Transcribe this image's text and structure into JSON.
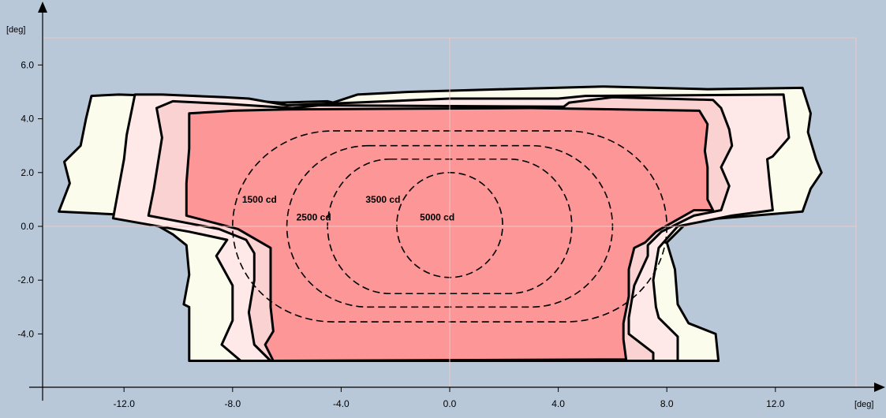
{
  "colors": {
    "background": "#b9c8d8",
    "plot_area": "#b9c8d8",
    "grid_line": "#f0c8c8",
    "zone_outer": "#fcfcec",
    "zone_2": "#ffe8e8",
    "zone_3": "#fbd2d2",
    "zone_inner": "#fd9696",
    "outline": "#000000"
  },
  "chart_data": {
    "type": "contour",
    "title": "",
    "xlabel": "[deg]",
    "ylabel": "[deg]",
    "xlim": [
      -15,
      15
    ],
    "ylim": [
      -6,
      7
    ],
    "x_ticks": [
      -12,
      -8,
      -4,
      0,
      4,
      8,
      12
    ],
    "x_tick_labels": [
      "-12.0",
      "-8.0",
      "-4.0",
      "0.0",
      "4.0",
      "8.0",
      "12.0"
    ],
    "y_ticks": [
      -4,
      -2,
      0,
      2,
      4,
      6
    ],
    "y_tick_labels": [
      "-4.0",
      "-2.0",
      "0.0",
      "2.0",
      "4.0",
      "6.0"
    ],
    "grid": "center crosshair",
    "filled_zones": [
      {
        "fill": "zone_outer",
        "points": [
          [
            -13.2,
            4.85
          ],
          [
            -12.2,
            4.9
          ],
          [
            -10.6,
            4.85
          ],
          [
            -8.1,
            4.7
          ],
          [
            -6.2,
            4.6
          ],
          [
            -4.5,
            4.65
          ],
          [
            -4.3,
            4.6
          ],
          [
            -3.4,
            4.9
          ],
          [
            -1.5,
            5.0
          ],
          [
            2.0,
            5.1
          ],
          [
            5.7,
            5.2
          ],
          [
            9.5,
            5.1
          ],
          [
            13.0,
            5.15
          ],
          [
            13.3,
            4.2
          ],
          [
            13.2,
            3.5
          ],
          [
            13.5,
            2.5
          ],
          [
            13.7,
            2.0
          ],
          [
            13.3,
            1.4
          ],
          [
            13.0,
            0.55
          ],
          [
            8.8,
            0.2
          ],
          [
            8.0,
            -0.6
          ],
          [
            8.3,
            -1.6
          ],
          [
            8.4,
            -2.9
          ],
          [
            8.8,
            -3.6
          ],
          [
            9.8,
            -4.0
          ],
          [
            9.9,
            -5.0
          ],
          [
            -9.6,
            -5.0
          ],
          [
            -9.6,
            -3.0
          ],
          [
            -9.8,
            -2.9
          ],
          [
            -9.6,
            -1.8
          ],
          [
            -9.7,
            -0.7
          ],
          [
            -10.2,
            -0.3
          ],
          [
            -11.4,
            0.4
          ],
          [
            -14.4,
            0.55
          ],
          [
            -14.0,
            1.6
          ],
          [
            -14.2,
            2.4
          ],
          [
            -13.6,
            3.0
          ],
          [
            -13.4,
            4.0
          ]
        ]
      },
      {
        "fill": "zone_2",
        "points": [
          [
            -11.6,
            4.9
          ],
          [
            -10.6,
            4.9
          ],
          [
            -8.3,
            4.8
          ],
          [
            -7.4,
            4.75
          ],
          [
            -6.0,
            4.5
          ],
          [
            -3.5,
            4.6
          ],
          [
            0.0,
            4.75
          ],
          [
            4.0,
            4.75
          ],
          [
            5.0,
            4.85
          ],
          [
            12.3,
            4.9
          ],
          [
            12.5,
            3.3
          ],
          [
            11.9,
            2.6
          ],
          [
            11.7,
            2.5
          ],
          [
            11.8,
            1.5
          ],
          [
            11.9,
            0.6
          ],
          [
            10.4,
            0.4
          ],
          [
            8.4,
            0.0
          ],
          [
            7.7,
            -0.8
          ],
          [
            7.5,
            -2.0
          ],
          [
            7.6,
            -3.0
          ],
          [
            7.7,
            -3.4
          ],
          [
            8.4,
            -4.1
          ],
          [
            8.4,
            -5.0
          ],
          [
            -7.7,
            -5.0
          ],
          [
            -8.4,
            -4.4
          ],
          [
            -8.0,
            -3.5
          ],
          [
            -8.0,
            -2.2
          ],
          [
            -8.6,
            -1.1
          ],
          [
            -8.2,
            -0.5
          ],
          [
            -9.6,
            -0.2
          ],
          [
            -12.4,
            0.3
          ],
          [
            -12.0,
            2.5
          ],
          [
            -11.9,
            3.4
          ]
        ]
      },
      {
        "fill": "zone_3",
        "points": [
          [
            -10.8,
            4.4
          ],
          [
            -10.2,
            4.65
          ],
          [
            -8.2,
            4.55
          ],
          [
            -5.8,
            4.4
          ],
          [
            -4.8,
            4.5
          ],
          [
            4.2,
            4.45
          ],
          [
            4.4,
            4.6
          ],
          [
            6.0,
            4.8
          ],
          [
            9.7,
            4.7
          ],
          [
            10.0,
            4.4
          ],
          [
            10.3,
            3.6
          ],
          [
            10.4,
            3.0
          ],
          [
            10.0,
            2.2
          ],
          [
            10.3,
            1.5
          ],
          [
            10.0,
            0.6
          ],
          [
            9.0,
            0.4
          ],
          [
            7.8,
            -0.2
          ],
          [
            7.3,
            -0.7
          ],
          [
            7.3,
            -1.1
          ],
          [
            6.8,
            -2.2
          ],
          [
            6.6,
            -3.4
          ],
          [
            6.6,
            -4.0
          ],
          [
            7.5,
            -4.7
          ],
          [
            7.5,
            -5.0
          ],
          [
            -6.6,
            -5.0
          ],
          [
            -7.2,
            -4.4
          ],
          [
            -7.4,
            -3.2
          ],
          [
            -7.2,
            -2.0
          ],
          [
            -7.2,
            -1.0
          ],
          [
            -7.5,
            -0.5
          ],
          [
            -8.5,
            -0.1
          ],
          [
            -11.1,
            0.4
          ],
          [
            -10.9,
            1.4
          ],
          [
            -10.6,
            3.3
          ]
        ]
      },
      {
        "fill": "zone_inner",
        "points": [
          [
            -9.6,
            4.2
          ],
          [
            -8.0,
            4.3
          ],
          [
            -6.0,
            4.35
          ],
          [
            3.0,
            4.4
          ],
          [
            9.2,
            4.3
          ],
          [
            9.5,
            3.8
          ],
          [
            9.4,
            2.8
          ],
          [
            9.5,
            2.2
          ],
          [
            9.5,
            1.0
          ],
          [
            9.7,
            0.6
          ],
          [
            9.0,
            0.6
          ],
          [
            7.6,
            -0.2
          ],
          [
            7.2,
            -0.6
          ],
          [
            6.8,
            -0.8
          ],
          [
            6.6,
            -1.6
          ],
          [
            6.6,
            -2.6
          ],
          [
            6.4,
            -3.6
          ],
          [
            6.4,
            -4.2
          ],
          [
            6.5,
            -4.95
          ],
          [
            -6.5,
            -5.0
          ],
          [
            -6.8,
            -4.4
          ],
          [
            -6.5,
            -3.9
          ],
          [
            -6.6,
            -3.0
          ],
          [
            -6.6,
            -1.8
          ],
          [
            -6.6,
            -0.8
          ],
          [
            -7.8,
            -0.1
          ],
          [
            -9.7,
            0.4
          ],
          [
            -9.7,
            1.6
          ],
          [
            -9.6,
            2.9
          ]
        ]
      }
    ],
    "isocandela": [
      {
        "label": "1500 cd",
        "rx": 8.0,
        "ry": 3.55,
        "cy": 0.0,
        "flat_half": 4.3,
        "label_at": [
          -7.65,
          1.0
        ]
      },
      {
        "label": "2500 cd",
        "rx": 6.0,
        "ry": 3.0,
        "cy": 0.0,
        "flat_half": 3.0,
        "label_at": [
          -5.65,
          0.33
        ]
      },
      {
        "label": "3500 cd",
        "rx": 4.5,
        "ry": 2.5,
        "cy": 0.0,
        "flat_half": 2.2,
        "label_at": [
          -3.1,
          1.0
        ]
      },
      {
        "label": "5000 cd",
        "rx": 1.95,
        "ry": 1.95,
        "cy": 0.05,
        "flat_half": 0.0,
        "label_at": [
          -1.1,
          0.33
        ]
      }
    ]
  }
}
